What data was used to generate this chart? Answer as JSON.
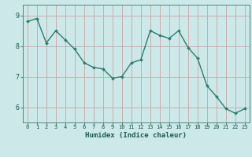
{
  "x": [
    0,
    1,
    2,
    3,
    4,
    5,
    6,
    7,
    8,
    9,
    10,
    11,
    12,
    13,
    14,
    15,
    16,
    17,
    18,
    19,
    20,
    21,
    22,
    23
  ],
  "y": [
    8.8,
    8.9,
    8.1,
    8.5,
    8.2,
    7.9,
    7.45,
    7.3,
    7.25,
    6.95,
    7.0,
    7.45,
    7.55,
    8.5,
    8.35,
    8.25,
    8.5,
    7.95,
    7.6,
    6.7,
    6.35,
    5.95,
    5.8,
    5.95
  ],
  "line_color": "#2e7d6e",
  "marker": "D",
  "marker_size": 2,
  "line_width": 1.0,
  "bg_color": "#cce8e8",
  "grid_color_v": "#d0a0a0",
  "grid_color_h": "#d0a0a0",
  "xlabel": "Humidex (Indice chaleur)",
  "xlabel_fontsize": 6.5,
  "yticks": [
    6,
    7,
    8,
    9
  ],
  "xtick_fontsize": 5.0,
  "ytick_fontsize": 6.0,
  "ylim": [
    5.5,
    9.35
  ],
  "xlim": [
    -0.5,
    23.5
  ]
}
